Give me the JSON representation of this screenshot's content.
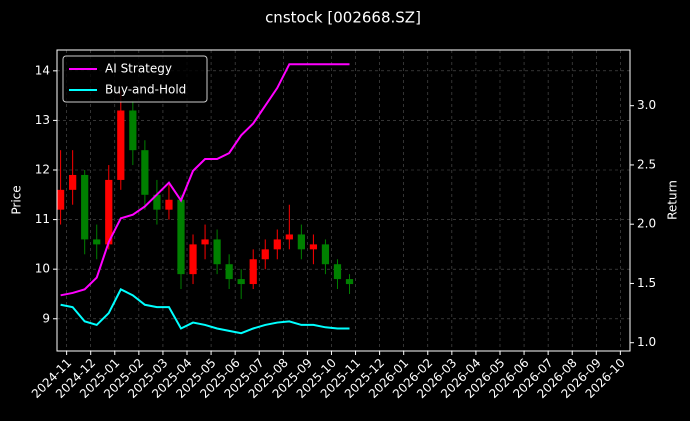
{
  "chart_data": {
    "type": "candlestick",
    "title": "cnstock [002668.SZ]",
    "ylabel": "Price",
    "y2label": "Return",
    "x": [
      -0.25,
      0.25,
      0.75,
      1.25,
      1.75,
      2.25,
      2.75,
      3.25,
      3.75,
      4.25,
      4.75,
      5.25,
      5.75,
      6.25,
      6.75,
      7.25,
      7.75,
      8.25,
      8.75,
      9.25,
      9.75,
      10.25,
      10.75,
      11.25,
      11.75
    ],
    "xlim": [
      -0.4,
      23.4
    ],
    "xticks": [
      {
        "value": 0,
        "label": "2024-11"
      },
      {
        "value": 1,
        "label": "2024-12"
      },
      {
        "value": 2,
        "label": "2025-01"
      },
      {
        "value": 3,
        "label": "2025-02"
      },
      {
        "value": 4,
        "label": "2025-03"
      },
      {
        "value": 5,
        "label": "2025-04"
      },
      {
        "value": 6,
        "label": "2025-05"
      },
      {
        "value": 7,
        "label": "2025-06"
      },
      {
        "value": 8,
        "label": "2025-07"
      },
      {
        "value": 9,
        "label": "2025-08"
      },
      {
        "value": 10,
        "label": "2025-09"
      },
      {
        "value": 11,
        "label": "2025-10"
      },
      {
        "value": 12,
        "label": "2025-11"
      },
      {
        "value": 13,
        "label": "2025-12"
      },
      {
        "value": 14,
        "label": "2026-01"
      },
      {
        "value": 15,
        "label": "2026-02"
      },
      {
        "value": 16,
        "label": "2026-03"
      },
      {
        "value": 17,
        "label": "2026-04"
      },
      {
        "value": 18,
        "label": "2026-05"
      },
      {
        "value": 19,
        "label": "2026-06"
      },
      {
        "value": 20,
        "label": "2026-07"
      },
      {
        "value": 21,
        "label": "2026-08"
      },
      {
        "value": 22,
        "label": "2026-09"
      },
      {
        "value": 23,
        "label": "2026-10"
      }
    ],
    "ylim": [
      8.35,
      14.42
    ],
    "yticks": [
      9,
      10,
      11,
      12,
      13,
      14
    ],
    "y2lim": [
      0.93,
      3.47
    ],
    "y2ticks": [
      {
        "value": 1,
        "label": "1.0"
      },
      1.5,
      {
        "value": 2,
        "label": "2.0"
      },
      2.5,
      {
        "value": 3,
        "label": "3.0"
      }
    ],
    "grid": true,
    "legend": "upper left",
    "ohlc": {
      "open": [
        11.2,
        11.6,
        11.9,
        10.6,
        10.5,
        11.8,
        13.2,
        12.4,
        11.5,
        11.2,
        11.4,
        9.9,
        10.5,
        10.6,
        10.1,
        9.8,
        9.7,
        10.2,
        10.4,
        10.6,
        10.7,
        10.4,
        10.5,
        10.1,
        9.8
      ],
      "high": [
        12.4,
        12.4,
        12.0,
        10.9,
        12.1,
        13.6,
        13.4,
        12.6,
        11.8,
        11.7,
        11.5,
        10.7,
        10.9,
        10.8,
        10.3,
        10.0,
        10.4,
        10.6,
        10.8,
        11.3,
        10.9,
        10.7,
        10.6,
        10.2,
        9.9
      ],
      "low": [
        10.9,
        11.3,
        10.3,
        10.2,
        10.4,
        11.6,
        12.1,
        11.2,
        10.9,
        11.0,
        9.6,
        9.7,
        10.2,
        9.9,
        9.6,
        9.4,
        9.6,
        10.0,
        10.2,
        10.4,
        10.2,
        10.1,
        9.9,
        9.6,
        9.5
      ],
      "close": [
        11.6,
        11.9,
        10.6,
        10.5,
        11.8,
        13.2,
        12.4,
        11.5,
        11.2,
        11.4,
        9.9,
        10.5,
        10.6,
        10.1,
        9.8,
        9.7,
        10.2,
        10.4,
        10.6,
        10.7,
        10.4,
        10.5,
        10.1,
        9.8,
        9.7
      ],
      "up_color": "#ff0000",
      "down_color": "#008000"
    },
    "series": [
      {
        "name": "AI Strategy",
        "color": "#ff00ff",
        "axis": "y2",
        "values": [
          1.4,
          1.42,
          1.45,
          1.55,
          1.85,
          2.05,
          2.08,
          2.15,
          2.25,
          2.35,
          2.2,
          2.45,
          2.55,
          2.55,
          2.6,
          2.75,
          2.85,
          3.0,
          3.15,
          3.35,
          3.35,
          3.35,
          3.35,
          3.35,
          3.35
        ]
      },
      {
        "name": "Buy-and-Hold",
        "color": "#00ffff",
        "axis": "y2",
        "values": [
          1.32,
          1.3,
          1.18,
          1.15,
          1.25,
          1.45,
          1.4,
          1.32,
          1.3,
          1.3,
          1.12,
          1.17,
          1.15,
          1.12,
          1.1,
          1.08,
          1.12,
          1.15,
          1.17,
          1.18,
          1.15,
          1.15,
          1.13,
          1.12,
          1.12
        ]
      }
    ]
  }
}
